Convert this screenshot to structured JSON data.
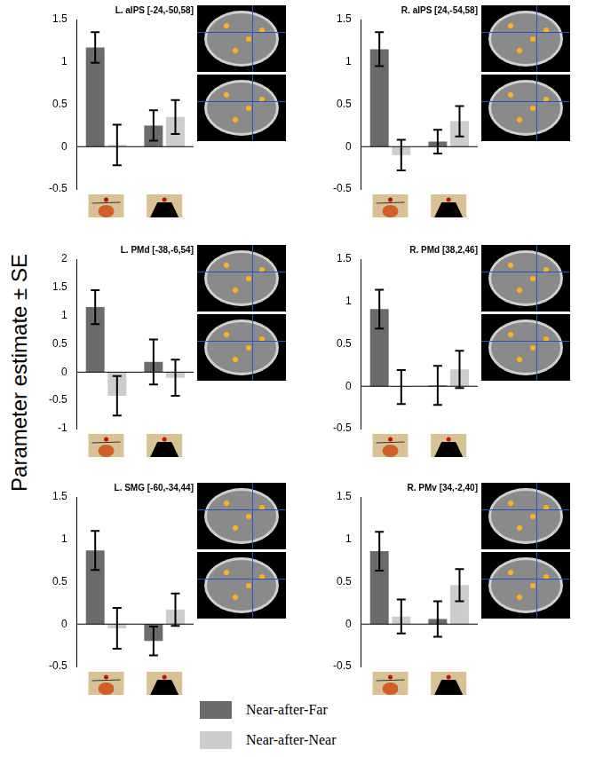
{
  "y_label": "Parameter estimate ± SE",
  "legend": "bottom",
  "chart_data": [
    {
      "type": "bar",
      "title": "L. aIPS [-24,-50,58]",
      "categories": [
        null,
        null
      ],
      "series": [
        {
          "name": "Near-after-Far",
          "color": "#6b6b6b",
          "values": [
            1.17,
            0.25
          ],
          "errors": [
            0.18,
            0.18
          ]
        },
        {
          "name": "Near-after-Near",
          "color": "#cdcdcd",
          "values": [
            0.02,
            0.35
          ],
          "errors": [
            0.24,
            0.2
          ]
        }
      ],
      "ylim": [
        -0.5,
        1.5
      ],
      "yticks": [
        -0.5,
        0,
        0.5,
        1,
        1.5
      ],
      "grid": false,
      "tick_labels": "y"
    },
    {
      "type": "bar",
      "title": "R. aIPS [24,-54,58]",
      "categories": [
        null,
        null
      ],
      "series": [
        {
          "name": "Near-after-Far",
          "color": "#6b6b6b",
          "values": [
            1.15,
            0.06
          ],
          "errors": [
            0.2,
            0.14
          ]
        },
        {
          "name": "Near-after-Near",
          "color": "#cdcdcd",
          "values": [
            -0.1,
            0.3
          ],
          "errors": [
            0.18,
            0.18
          ]
        }
      ],
      "ylim": [
        -0.5,
        1.5
      ],
      "yticks": [
        -0.5,
        0,
        0.5,
        1,
        1.5
      ],
      "grid": false,
      "tick_labels": "y"
    },
    {
      "type": "bar",
      "title": "L. PMd [-38,-6,54]",
      "categories": [
        null,
        null
      ],
      "series": [
        {
          "name": "Near-after-Far",
          "color": "#6b6b6b",
          "values": [
            1.15,
            0.18
          ],
          "errors": [
            0.3,
            0.4
          ]
        },
        {
          "name": "Near-after-Near",
          "color": "#cdcdcd",
          "values": [
            -0.42,
            -0.1
          ],
          "errors": [
            0.35,
            0.32
          ]
        }
      ],
      "ylim": [
        -1,
        2
      ],
      "yticks": [
        -1,
        -0.5,
        0,
        0.5,
        1,
        1.5,
        2
      ],
      "grid": false,
      "tick_labels": "y"
    },
    {
      "type": "bar",
      "title": "R. PMd [38,2,46]",
      "categories": [
        null,
        null
      ],
      "series": [
        {
          "name": "Near-after-Far",
          "color": "#6b6b6b",
          "values": [
            0.91,
            0.01
          ],
          "errors": [
            0.23,
            0.23
          ]
        },
        {
          "name": "Near-after-Near",
          "color": "#cdcdcd",
          "values": [
            -0.01,
            0.2
          ],
          "errors": [
            0.2,
            0.22
          ]
        }
      ],
      "ylim": [
        -0.5,
        1.5
      ],
      "yticks": [
        -0.5,
        0,
        0.5,
        1,
        1.5
      ],
      "grid": false,
      "tick_labels": "y"
    },
    {
      "type": "bar",
      "title": "L. SMG [-60,-34,44]",
      "categories": [
        null,
        null
      ],
      "series": [
        {
          "name": "Near-after-Far",
          "color": "#6b6b6b",
          "values": [
            0.87,
            -0.2
          ],
          "errors": [
            0.23,
            0.17
          ]
        },
        {
          "name": "Near-after-Near",
          "color": "#cdcdcd",
          "values": [
            -0.05,
            0.17
          ],
          "errors": [
            0.24,
            0.19
          ]
        }
      ],
      "ylim": [
        -0.5,
        1.5
      ],
      "yticks": [
        -0.5,
        0,
        0.5,
        1,
        1.5
      ],
      "grid": false,
      "tick_labels": "y"
    },
    {
      "type": "bar",
      "title": "R. PMv [34,-2,40]",
      "categories": [
        null,
        null
      ],
      "series": [
        {
          "name": "Near-after-Far",
          "color": "#6b6b6b",
          "values": [
            0.86,
            0.06
          ],
          "errors": [
            0.23,
            0.21
          ]
        },
        {
          "name": "Near-after-Near",
          "color": "#cdcdcd",
          "values": [
            0.09,
            0.46
          ],
          "errors": [
            0.2,
            0.19
          ]
        }
      ],
      "ylim": [
        -0.5,
        1.5
      ],
      "yticks": [
        -0.5,
        0,
        0.5,
        1,
        1.5
      ],
      "grid": false,
      "tick_labels": "y"
    }
  ]
}
